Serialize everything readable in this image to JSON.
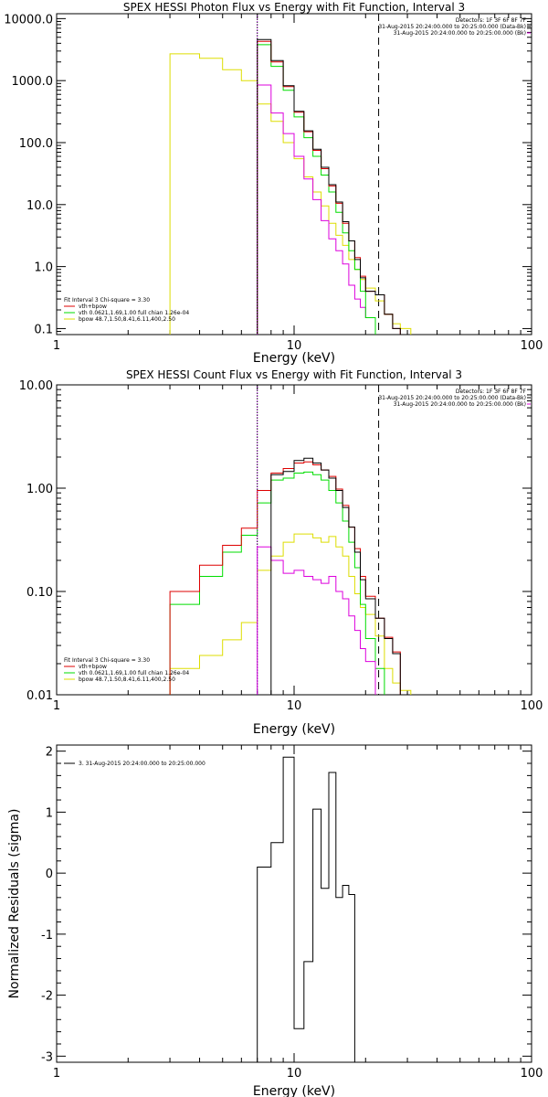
{
  "colors": {
    "data": "#000000",
    "total": "#dd0000",
    "vth": "#00dd00",
    "bpow": "#dddd00",
    "background": "#dd00dd",
    "marker_dotted_purple": "#9900cc"
  },
  "chart_data": [
    {
      "type": "line",
      "title": "SPEX HESSI Photon Flux vs Energy with Fit Function, Interval 3",
      "xlabel": "Energy (keV)",
      "ylabel": "",
      "xscale": "log",
      "yscale": "log",
      "xlim": [
        1,
        100
      ],
      "ylim": [
        0.08,
        12000
      ],
      "xticks": [
        1,
        10,
        100
      ],
      "xtick_labels": [
        "1",
        "10",
        "100"
      ],
      "yticks": [
        0.1,
        1,
        10,
        100,
        1000,
        10000
      ],
      "ytick_labels": [
        "0.1",
        "1.0",
        "10.0",
        "100.0",
        "1000.0",
        "10000.0"
      ],
      "annotations_right": [
        "Detectors: 1F 3F 6F 8F 7F",
        "31-Aug-2015 20:24:00.000 to 20:25:00.000 (Data-Bk)",
        "31-Aug-2015 20:24:00.000 to 20:25:00.000 (Bk)"
      ],
      "legend": [
        "Fit Interval 3   Chi-square = 3.30",
        "vth+bpow",
        "vth 0.0621,1.69,1.00  full chian 1.26e-04",
        "bpow 48.7,1.50,8.41,6.11,400,2.50"
      ],
      "vlines": [
        {
          "x": 7.0,
          "style": "dotted"
        },
        {
          "x": 22.7,
          "style": "dashed"
        }
      ],
      "edges": [
        3,
        4,
        5,
        6,
        7,
        8,
        9,
        10,
        11,
        12,
        13,
        14,
        15,
        16,
        17,
        18,
        19,
        20,
        22,
        24,
        26,
        28,
        31
      ],
      "series": [
        {
          "key": "bpow",
          "values": [
            2700,
            2300,
            1500,
            1000,
            420,
            220,
            100,
            55,
            28,
            16,
            9.5,
            5,
            3.2,
            2.2,
            1.3,
            0.9,
            0.62,
            0.45,
            0.28,
            0.17,
            0.12,
            0.1
          ]
        },
        {
          "key": "background",
          "values": [
            null,
            null,
            null,
            null,
            850,
            300,
            140,
            60,
            26,
            12,
            5.5,
            2.8,
            1.8,
            1.1,
            0.5,
            0.3,
            0.22,
            0.15,
            null,
            null,
            null,
            null
          ]
        },
        {
          "key": "vth",
          "values": [
            null,
            null,
            null,
            null,
            3800,
            1700,
            700,
            260,
            120,
            60,
            30,
            16,
            7.5,
            3.5,
            1.8,
            0.9,
            0.4,
            0.15,
            null,
            null,
            null,
            null
          ]
        },
        {
          "key": "total",
          "values": [
            null,
            null,
            null,
            null,
            4300,
            2000,
            800,
            310,
            150,
            75,
            38,
            20,
            10.5,
            5,
            2.6,
            1.4,
            0.7,
            0.4,
            0.35,
            0.17,
            0.1,
            null
          ]
        },
        {
          "key": "data",
          "values": [
            null,
            null,
            null,
            null,
            4600,
            2100,
            830,
            320,
            155,
            78,
            40,
            21,
            11,
            5.3,
            2.6,
            1.3,
            0.66,
            0.4,
            0.35,
            0.17,
            0.1,
            null
          ]
        }
      ]
    },
    {
      "type": "line",
      "title": "SPEX HESSI Count Flux vs Energy with Fit Function, Interval 3",
      "xlabel": "Energy (keV)",
      "ylabel": "",
      "xscale": "log",
      "yscale": "log",
      "xlim": [
        1,
        100
      ],
      "ylim": [
        0.01,
        10
      ],
      "xticks": [
        1,
        10,
        100
      ],
      "xtick_labels": [
        "1",
        "10",
        "100"
      ],
      "yticks": [
        0.01,
        0.1,
        1,
        10
      ],
      "ytick_labels": [
        "0.01",
        "0.10",
        "1.00",
        "10.00"
      ],
      "annotations_right": [
        "Detectors: 1F 3F 6F 8F 7F",
        "31-Aug-2015 20:24:00.000 to 20:25:00.000 (Data-Bk)",
        "31-Aug-2015 20:24:00.000 to 20:25:00.000 (Bk)"
      ],
      "legend": [
        "Fit Interval 3   Chi-square = 3.30",
        "vth+bpow",
        "vth 0.0621,1.69,1.00  full chian 1.26e-04",
        "bpow 48.7,1.50,8.41,6.11,400,2.50"
      ],
      "vlines": [
        {
          "x": 7.0,
          "style": "dotted"
        },
        {
          "x": 22.7,
          "style": "dashed"
        }
      ],
      "edges": [
        3,
        4,
        5,
        6,
        7,
        8,
        9,
        10,
        11,
        12,
        13,
        14,
        15,
        16,
        17,
        18,
        19,
        20,
        22,
        24,
        26,
        28,
        31
      ],
      "series": [
        {
          "key": "bpow",
          "values": [
            0.018,
            0.024,
            0.034,
            0.05,
            0.16,
            0.22,
            0.3,
            0.36,
            0.36,
            0.33,
            0.3,
            0.34,
            0.27,
            0.22,
            0.14,
            0.095,
            0.07,
            0.06,
            0.037,
            0.018,
            0.013,
            0.011
          ]
        },
        {
          "key": "vth",
          "values": [
            0.075,
            0.14,
            0.24,
            0.35,
            0.72,
            1.2,
            1.25,
            1.4,
            1.43,
            1.35,
            1.2,
            0.95,
            0.72,
            0.48,
            0.3,
            0.17,
            0.075,
            0.035,
            0.018,
            null,
            null,
            null
          ]
        },
        {
          "key": "background",
          "values": [
            null,
            null,
            null,
            null,
            0.27,
            0.2,
            0.15,
            0.16,
            0.14,
            0.13,
            0.12,
            0.14,
            0.1,
            0.085,
            0.058,
            0.042,
            0.028,
            0.021,
            null,
            null,
            null,
            null
          ]
        },
        {
          "key": "total",
          "values": [
            0.1,
            0.18,
            0.28,
            0.41,
            0.95,
            1.4,
            1.55,
            1.75,
            1.8,
            1.68,
            1.5,
            1.3,
            0.98,
            0.68,
            0.42,
            0.26,
            0.14,
            0.09,
            0.055,
            0.036,
            0.026,
            null
          ]
        },
        {
          "key": "data",
          "values": [
            null,
            null,
            null,
            null,
            null,
            1.35,
            1.45,
            1.85,
            1.95,
            1.75,
            1.5,
            1.25,
            0.95,
            0.65,
            0.42,
            0.24,
            0.13,
            0.085,
            0.055,
            0.035,
            0.025,
            null
          ]
        }
      ]
    },
    {
      "type": "line",
      "title": "",
      "xlabel": "Energy (keV)",
      "ylabel": "Normalized Residuals (sigma)",
      "xscale": "log",
      "yscale": "linear",
      "xlim": [
        1,
        100
      ],
      "ylim": [
        -3.1,
        2.1
      ],
      "xticks": [
        1,
        10,
        100
      ],
      "xtick_labels": [
        "1",
        "10",
        "100"
      ],
      "yticks": [
        -3,
        -2,
        -1,
        0,
        1,
        2
      ],
      "ytick_labels": [
        "-3",
        "-2",
        "-1",
        "0",
        "1",
        "2"
      ],
      "annotations_right": [],
      "legend": [
        "3. 31-Aug-2015 20:24:00.000 to 20:25:00.000"
      ],
      "vlines": [],
      "edges": [
        7,
        8,
        9,
        10,
        11,
        12,
        13,
        14,
        15,
        16,
        17,
        18,
        19,
        20,
        22
      ],
      "series": [
        {
          "key": "data",
          "values": [
            0.1,
            0.5,
            1.9,
            -2.55,
            -1.45,
            1.05,
            -0.25,
            1.65,
            -0.4,
            -0.2,
            -0.35,
            null,
            null,
            null
          ]
        }
      ]
    }
  ]
}
